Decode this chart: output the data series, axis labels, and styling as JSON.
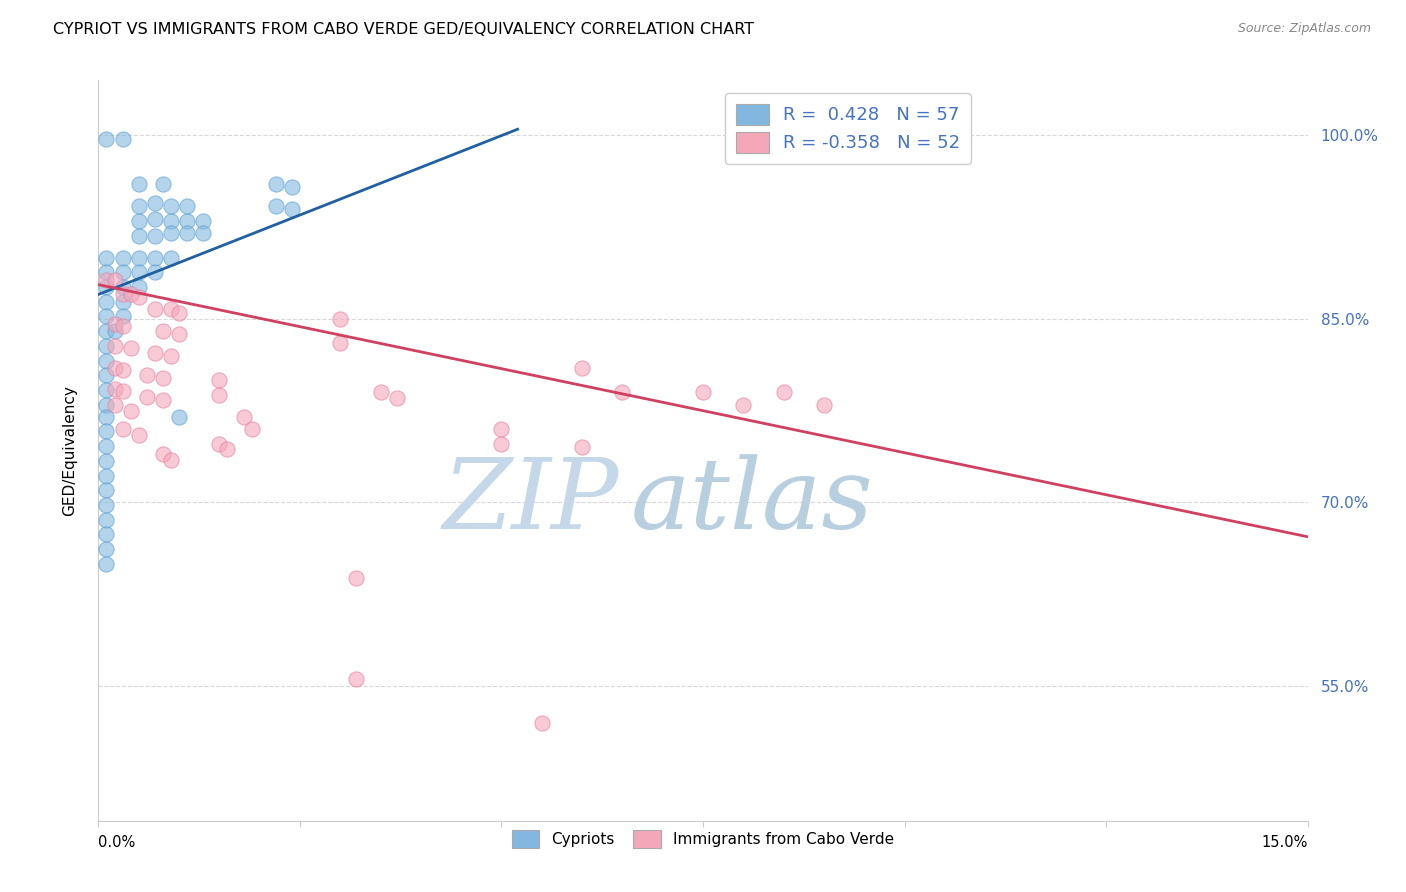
{
  "title": "CYPRIOT VS IMMIGRANTS FROM CABO VERDE GED/EQUIVALENCY CORRELATION CHART",
  "source": "Source: ZipAtlas.com",
  "ylabel": "GED/Equivalency",
  "ytick_labels": [
    "100.0%",
    "85.0%",
    "70.0%",
    "55.0%"
  ],
  "ytick_values": [
    1.0,
    0.85,
    0.7,
    0.55
  ],
  "xtick_labels": [
    "0.0%",
    "",
    "",
    "",
    "",
    "",
    "",
    "",
    "15.0%"
  ],
  "xmin": 0.0,
  "xmax": 0.15,
  "ymin": 0.44,
  "ymax": 1.045,
  "legend_r_blue": "0.428",
  "legend_n_blue": "57",
  "legend_r_pink": "-0.358",
  "legend_n_pink": "52",
  "blue_color": "#82b8e0",
  "blue_edge_color": "#5a9fd4",
  "pink_color": "#f4a7b9",
  "pink_edge_color": "#e87fa0",
  "trendline_blue_color": "#2060a0",
  "trendline_pink_color": "#d04060",
  "blue_scatter": [
    [
      0.001,
      0.997
    ],
    [
      0.003,
      0.997
    ],
    [
      0.005,
      0.96
    ],
    [
      0.008,
      0.96
    ],
    [
      0.005,
      0.942
    ],
    [
      0.007,
      0.945
    ],
    [
      0.009,
      0.942
    ],
    [
      0.011,
      0.942
    ],
    [
      0.005,
      0.93
    ],
    [
      0.007,
      0.932
    ],
    [
      0.009,
      0.93
    ],
    [
      0.011,
      0.93
    ],
    [
      0.013,
      0.93
    ],
    [
      0.005,
      0.918
    ],
    [
      0.007,
      0.918
    ],
    [
      0.009,
      0.92
    ],
    [
      0.011,
      0.92
    ],
    [
      0.013,
      0.92
    ],
    [
      0.001,
      0.9
    ],
    [
      0.003,
      0.9
    ],
    [
      0.005,
      0.9
    ],
    [
      0.007,
      0.9
    ],
    [
      0.009,
      0.9
    ],
    [
      0.001,
      0.888
    ],
    [
      0.003,
      0.888
    ],
    [
      0.005,
      0.888
    ],
    [
      0.007,
      0.888
    ],
    [
      0.001,
      0.876
    ],
    [
      0.003,
      0.876
    ],
    [
      0.005,
      0.876
    ],
    [
      0.001,
      0.864
    ],
    [
      0.003,
      0.864
    ],
    [
      0.001,
      0.852
    ],
    [
      0.003,
      0.852
    ],
    [
      0.001,
      0.84
    ],
    [
      0.002,
      0.84
    ],
    [
      0.001,
      0.828
    ],
    [
      0.001,
      0.816
    ],
    [
      0.001,
      0.804
    ],
    [
      0.001,
      0.792
    ],
    [
      0.001,
      0.78
    ],
    [
      0.022,
      0.96
    ],
    [
      0.024,
      0.958
    ],
    [
      0.022,
      0.942
    ],
    [
      0.024,
      0.94
    ],
    [
      0.01,
      0.77
    ],
    [
      0.001,
      0.77
    ],
    [
      0.001,
      0.758
    ],
    [
      0.001,
      0.746
    ],
    [
      0.001,
      0.734
    ],
    [
      0.001,
      0.722
    ],
    [
      0.001,
      0.71
    ],
    [
      0.001,
      0.698
    ],
    [
      0.001,
      0.686
    ],
    [
      0.001,
      0.674
    ],
    [
      0.001,
      0.662
    ],
    [
      0.001,
      0.65
    ]
  ],
  "pink_scatter": [
    [
      0.001,
      0.882
    ],
    [
      0.002,
      0.882
    ],
    [
      0.003,
      0.87
    ],
    [
      0.004,
      0.87
    ],
    [
      0.005,
      0.868
    ],
    [
      0.007,
      0.858
    ],
    [
      0.009,
      0.858
    ],
    [
      0.01,
      0.855
    ],
    [
      0.002,
      0.846
    ],
    [
      0.003,
      0.844
    ],
    [
      0.008,
      0.84
    ],
    [
      0.01,
      0.838
    ],
    [
      0.002,
      0.828
    ],
    [
      0.004,
      0.826
    ],
    [
      0.007,
      0.822
    ],
    [
      0.009,
      0.82
    ],
    [
      0.002,
      0.81
    ],
    [
      0.003,
      0.808
    ],
    [
      0.006,
      0.804
    ],
    [
      0.008,
      0.802
    ],
    [
      0.002,
      0.793
    ],
    [
      0.003,
      0.791
    ],
    [
      0.006,
      0.786
    ],
    [
      0.008,
      0.784
    ],
    [
      0.015,
      0.8
    ],
    [
      0.015,
      0.788
    ],
    [
      0.002,
      0.78
    ],
    [
      0.004,
      0.775
    ],
    [
      0.018,
      0.77
    ],
    [
      0.019,
      0.76
    ],
    [
      0.03,
      0.85
    ],
    [
      0.03,
      0.83
    ],
    [
      0.003,
      0.76
    ],
    [
      0.005,
      0.755
    ],
    [
      0.015,
      0.748
    ],
    [
      0.016,
      0.744
    ],
    [
      0.035,
      0.79
    ],
    [
      0.037,
      0.785
    ],
    [
      0.06,
      0.81
    ],
    [
      0.065,
      0.79
    ],
    [
      0.075,
      0.79
    ],
    [
      0.08,
      0.78
    ],
    [
      0.085,
      0.79
    ],
    [
      0.09,
      0.78
    ],
    [
      0.008,
      0.74
    ],
    [
      0.009,
      0.735
    ],
    [
      0.05,
      0.76
    ],
    [
      0.05,
      0.748
    ],
    [
      0.06,
      0.745
    ],
    [
      0.032,
      0.638
    ],
    [
      0.032,
      0.556
    ],
    [
      0.055,
      0.52
    ]
  ],
  "blue_trend_x": [
    0.0,
    0.052
  ],
  "blue_trend_y": [
    0.87,
    1.005
  ],
  "pink_trend_x": [
    0.0,
    0.15
  ],
  "pink_trend_y": [
    0.878,
    0.672
  ],
  "watermark_zip": "ZIP",
  "watermark_atlas": "atlas",
  "background_color": "#ffffff",
  "grid_color": "#d8d8d8",
  "legend_blue_color": "#4472c4",
  "bottom_legend_labels": [
    "Cypriots",
    "Immigrants from Cabo Verde"
  ]
}
